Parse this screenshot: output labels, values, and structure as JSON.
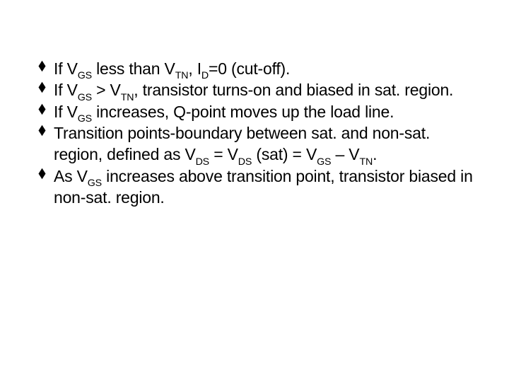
{
  "text_color": "#000000",
  "background_color": "#ffffff",
  "bullet_color": "#000000",
  "font_size_pt": 17,
  "bullets": [
    {
      "pre0": "If V",
      "sub0": "GS",
      "mid0": " less than V",
      "sub1": "TN",
      "mid1": ", I",
      "sub2": "D",
      "tail": "=0 (cut-off)."
    },
    {
      "pre0": "If V",
      "sub0": "GS",
      "mid0": " > V",
      "sub1": "TN",
      "tail": ", transistor turns-on and biased in sat. region."
    },
    {
      "pre0": "If V",
      "sub0": "GS",
      "tail": " increases, Q-point moves up the load line."
    },
    {
      "pre0": "Transition points-boundary between sat. and non-sat. region, defined as V",
      "sub0": "DS",
      "mid0": " = V",
      "sub1": "DS",
      "mid1": " (sat) = V",
      "sub2": "GS",
      "mid2": " – V",
      "sub3": "TN",
      "tail": "."
    },
    {
      "pre0": "As V",
      "sub0": "GS",
      "tail": " increases above transition point, transistor biased in non-sat. region."
    }
  ]
}
